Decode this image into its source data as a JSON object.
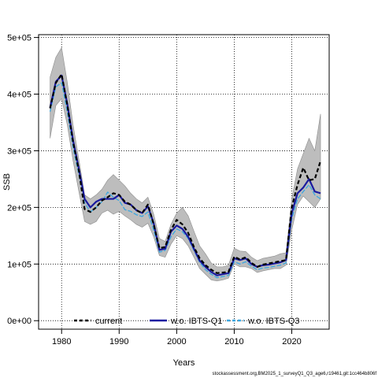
{
  "chart_data": {
    "type": "line",
    "title": "",
    "xlabel": "Years",
    "ylabel": "SSB",
    "xlim": [
      1976,
      2026.5
    ],
    "ylim": [
      -15000,
      505000
    ],
    "grid": true,
    "legend_position": "bottom",
    "x_ticks": [
      1980,
      1990,
      2000,
      2010,
      2020
    ],
    "x_tick_labels": [
      "1980",
      "1990",
      "2000",
      "2010",
      "2020"
    ],
    "y_ticks": [
      0,
      100000,
      200000,
      300000,
      400000,
      500000
    ],
    "y_tick_labels": [
      "0e+00",
      "1e+05",
      "2e+05",
      "3e+05",
      "4e+05",
      "5e+05"
    ],
    "x": [
      1978,
      1979,
      1980,
      1981,
      1982,
      1983,
      1984,
      1985,
      1986,
      1987,
      1988,
      1989,
      1990,
      1991,
      1992,
      1993,
      1994,
      1995,
      1996,
      1997,
      1998,
      1999,
      2000,
      2001,
      2002,
      2003,
      2004,
      2005,
      2006,
      2007,
      2008,
      2009,
      2010,
      2011,
      2012,
      2013,
      2014,
      2015,
      2016,
      2017,
      2018,
      2019,
      2020,
      2021,
      2022,
      2023,
      2024,
      2025
    ],
    "band": {
      "upper": [
        430000,
        465000,
        482000,
        420000,
        345000,
        285000,
        222000,
        215000,
        222000,
        232000,
        248000,
        258000,
        248000,
        238000,
        225000,
        215000,
        208000,
        218000,
        188000,
        145000,
        140000,
        170000,
        190000,
        200000,
        185000,
        158000,
        132000,
        118000,
        102000,
        95000,
        95000,
        98000,
        128000,
        123000,
        122000,
        112000,
        106000,
        110000,
        112000,
        114000,
        118000,
        120000,
        215000,
        268000,
        295000,
        322000,
        300000,
        365000
      ],
      "lower": [
        322000,
        380000,
        392000,
        345000,
        282000,
        228000,
        175000,
        170000,
        175000,
        190000,
        195000,
        188000,
        193000,
        185000,
        178000,
        170000,
        165000,
        172000,
        148000,
        115000,
        112000,
        135000,
        150000,
        145000,
        132000,
        112000,
        92000,
        82000,
        72000,
        70000,
        72000,
        75000,
        100000,
        95000,
        95000,
        92000,
        85000,
        88000,
        90000,
        92000,
        92000,
        98000,
        160000,
        205000,
        220000,
        210000,
        200000,
        215000
      ]
    },
    "series": [
      {
        "name": "current",
        "color": "#000000",
        "dashed": true,
        "values": [
          375000,
          420000,
          435000,
          380000,
          315000,
          265000,
          197000,
          192000,
          200000,
          212000,
          218000,
          225000,
          222000,
          210000,
          205000,
          195000,
          190000,
          205000,
          170000,
          128000,
          130000,
          160000,
          178000,
          170000,
          155000,
          130000,
          110000,
          98000,
          90000,
          84000,
          85000,
          86000,
          113000,
          108000,
          112000,
          102000,
          95000,
          99000,
          101000,
          103000,
          105000,
          107000,
          200000,
          240000,
          270000,
          248000,
          250000,
          282000
        ]
      },
      {
        "name": "w.o. IBTS-Q1",
        "color": "#1a1aa0",
        "dashed": false,
        "values": [
          376000,
          422000,
          433000,
          382000,
          318000,
          268000,
          215000,
          200000,
          210000,
          215000,
          215000,
          215000,
          222000,
          208000,
          205000,
          195000,
          190000,
          202000,
          172000,
          125000,
          127000,
          157000,
          168000,
          162000,
          148000,
          127000,
          106000,
          95000,
          86000,
          80000,
          82000,
          84000,
          110000,
          107000,
          110000,
          100000,
          95000,
          98000,
          99000,
          101000,
          103000,
          107000,
          190000,
          225000,
          235000,
          250000,
          228000,
          225000
        ]
      },
      {
        "name": "w.o. IBTS-Q3",
        "color": "#3ba7e0",
        "dashed": true,
        "values": [
          369000,
          413000,
          420000,
          368000,
          305000,
          258000,
          208000,
          192000,
          200000,
          210000,
          227000,
          218000,
          212000,
          196000,
          193000,
          187000,
          184000,
          192000,
          160000,
          121000,
          124000,
          148000,
          162000,
          157000,
          145000,
          124000,
          103000,
          90000,
          82000,
          76000,
          78000,
          80000,
          104000,
          100000,
          104000,
          96000,
          90000,
          93000,
          94000,
          96000,
          98000,
          102000,
          180000,
          215000,
          228000,
          240000,
          222000,
          215000
        ]
      }
    ]
  },
  "footer_text": "stockassessment.org,BM2025_1_surveyQ1_Q3_age6,r19461,git:1cc464b806f"
}
